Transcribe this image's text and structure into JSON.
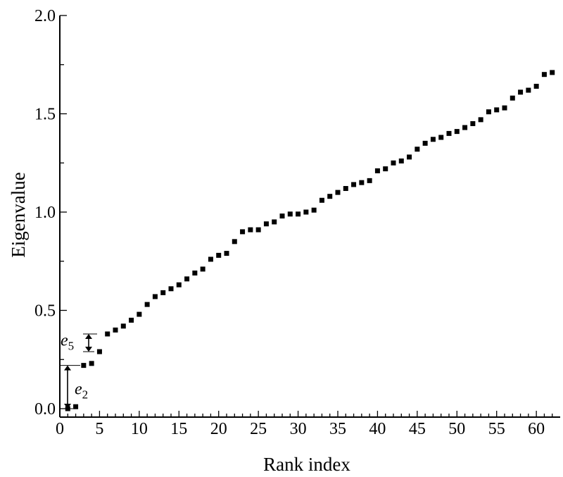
{
  "chart_data": {
    "type": "scatter",
    "title": "",
    "xlabel": "Rank index",
    "ylabel": "Eigenvalue",
    "xlim": [
      0,
      63
    ],
    "ylim": [
      -0.02,
      2.0
    ],
    "xticks": [
      0,
      5,
      10,
      15,
      20,
      25,
      30,
      35,
      40,
      45,
      50,
      55,
      60
    ],
    "yticks": [
      0.0,
      0.5,
      1.0,
      1.5,
      2.0
    ],
    "ytick_labels": [
      "0.0",
      "0.5",
      "1.0",
      "1.5",
      "2.0"
    ],
    "grid": false,
    "marker": "square",
    "marker_color": "#000000",
    "series": [
      {
        "x": [
          1,
          2,
          3,
          4,
          5,
          6,
          7,
          8,
          9,
          10,
          11,
          12,
          13,
          14,
          15,
          16,
          17,
          18,
          19,
          20,
          21,
          22,
          23,
          24,
          25,
          26,
          27,
          28,
          29,
          30,
          31,
          32,
          33,
          34,
          35,
          36,
          37,
          38,
          39,
          40,
          41,
          42,
          43,
          44,
          45,
          46,
          47,
          48,
          49,
          50,
          51,
          52,
          53,
          54,
          55,
          56,
          57,
          58,
          59,
          60,
          61,
          62
        ],
        "values": [
          0.0,
          0.01,
          0.22,
          0.23,
          0.29,
          0.38,
          0.4,
          0.42,
          0.45,
          0.48,
          0.53,
          0.57,
          0.59,
          0.61,
          0.63,
          0.66,
          0.69,
          0.71,
          0.76,
          0.78,
          0.79,
          0.85,
          0.9,
          0.91,
          0.91,
          0.94,
          0.95,
          0.98,
          0.99,
          0.99,
          1.0,
          1.01,
          1.06,
          1.08,
          1.1,
          1.12,
          1.14,
          1.15,
          1.16,
          1.21,
          1.22,
          1.25,
          1.26,
          1.28,
          1.32,
          1.35,
          1.37,
          1.38,
          1.4,
          1.41,
          1.43,
          1.45,
          1.47,
          1.51,
          1.52,
          1.53,
          1.58,
          1.61,
          1.62,
          1.64,
          1.7,
          1.71
        ]
      }
    ],
    "annotations": [
      {
        "label": "e",
        "subscript": "2",
        "from": 0.0,
        "to": 0.22,
        "x": 1
      },
      {
        "label": "e",
        "subscript": "5",
        "from": 0.29,
        "to": 0.38,
        "x": 5
      }
    ]
  }
}
